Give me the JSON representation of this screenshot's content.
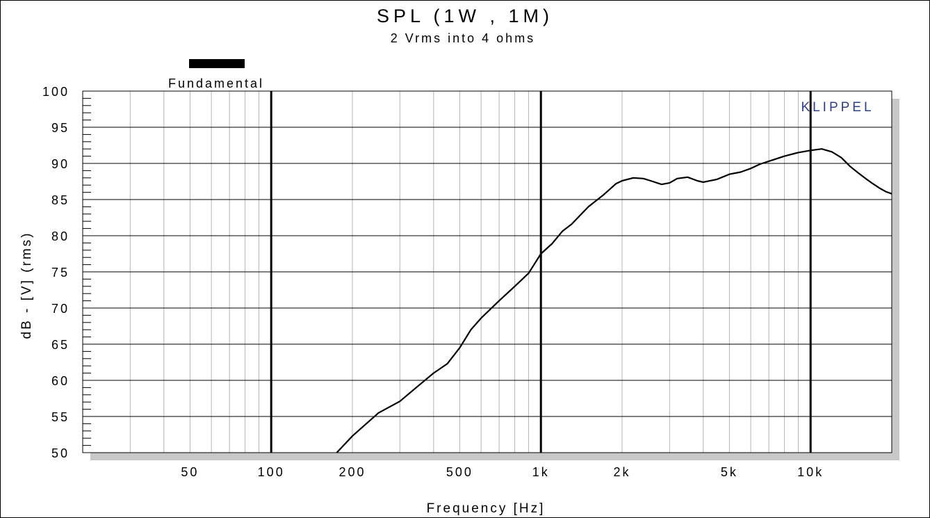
{
  "chart_data": {
    "type": "line",
    "title": "SPL (1W , 1M)",
    "subtitle": "2 Vrms into 4 ohms",
    "xlabel": "Frequency [Hz]",
    "ylabel": "dB - [V]  (rms)",
    "xscale": "log",
    "xlim": [
      20,
      20000
    ],
    "ylim": [
      50,
      100
    ],
    "y_ticks": [
      "100",
      "95",
      "90",
      "85",
      "80",
      "75",
      "70",
      "65",
      "60",
      "55",
      "50"
    ],
    "x_ticks": [
      {
        "value": 50,
        "label": "50"
      },
      {
        "value": 100,
        "label": "100"
      },
      {
        "value": 200,
        "label": "200"
      },
      {
        "value": 500,
        "label": "500"
      },
      {
        "value": 1000,
        "label": "1k"
      },
      {
        "value": 2000,
        "label": "2k"
      },
      {
        "value": 5000,
        "label": "5k"
      },
      {
        "value": 10000,
        "label": "10k"
      }
    ],
    "grid": true,
    "legend": {
      "position": "top-left",
      "entries": [
        "Fundamental"
      ]
    },
    "annotation": "KLIPPEL",
    "series": [
      {
        "name": "Fundamental",
        "x": [
          175,
          200,
          250,
          300,
          350,
          400,
          450,
          500,
          550,
          600,
          700,
          800,
          900,
          1000,
          1100,
          1200,
          1300,
          1500,
          1700,
          1900,
          2000,
          2200,
          2400,
          2600,
          2800,
          3000,
          3200,
          3500,
          3800,
          4000,
          4500,
          5000,
          5500,
          6000,
          6500,
          7000,
          8000,
          9000,
          10000,
          11000,
          12000,
          13000,
          14000,
          15000,
          16000,
          17000,
          18000,
          19000,
          20000
        ],
        "y": [
          50,
          52.3,
          55.5,
          57.1,
          59.2,
          61.0,
          62.3,
          64.5,
          67.0,
          68.6,
          71.0,
          73.0,
          74.8,
          77.5,
          78.9,
          80.6,
          81.6,
          84.0,
          85.6,
          87.2,
          87.6,
          88.0,
          87.9,
          87.5,
          87.1,
          87.3,
          87.9,
          88.1,
          87.6,
          87.4,
          87.8,
          88.5,
          88.8,
          89.3,
          89.9,
          90.3,
          91.0,
          91.5,
          91.8,
          92.0,
          91.6,
          90.8,
          89.6,
          88.7,
          87.9,
          87.2,
          86.6,
          86.1,
          85.8
        ]
      }
    ]
  }
}
